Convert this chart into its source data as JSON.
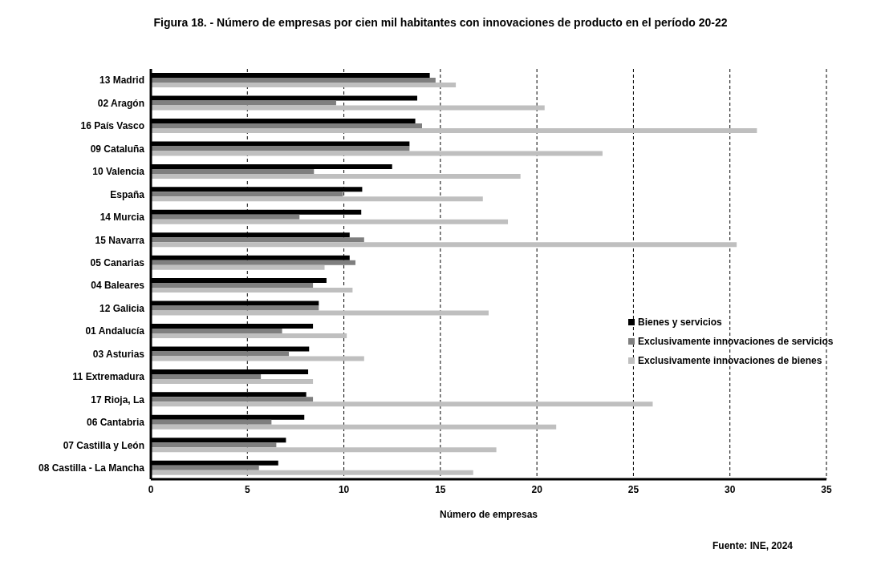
{
  "chart_data": {
    "type": "bar",
    "orientation": "horizontal",
    "title": "Figura 18. - Número de empresas por cien mil habitantes con innovaciones de producto en el período 20-22",
    "xlabel": "Número de empresas",
    "annotations": [
      "Fuente: INE, 2024"
    ],
    "categories": [
      "13 Madrid",
      "02 Aragón",
      "16 País Vasco",
      "09 Cataluña",
      "10 Valencia",
      "España",
      "14 Murcia",
      "15 Navarra",
      "05 Canarias",
      "04 Baleares",
      "12 Galicia",
      "01 Andalucía",
      "03 Asturias",
      "11 Extremadura",
      "17 Rioja, La",
      "06 Cantabria",
      "07 Castilla y León",
      "08 Castilla - La Mancha"
    ],
    "series": [
      {
        "name": "Bienes y servicios",
        "color": "#000000",
        "values": [
          14.45,
          13.8,
          13.7,
          13.4,
          12.5,
          10.95,
          10.9,
          10.3,
          10.3,
          9.1,
          8.7,
          8.4,
          8.2,
          8.15,
          8.05,
          7.95,
          7.0,
          6.6
        ]
      },
      {
        "name": "Exclusivamente innovaciones de servicios",
        "color": "#7f7f7f",
        "values": [
          14.75,
          9.6,
          14.05,
          13.4,
          8.45,
          9.95,
          7.7,
          11.05,
          10.6,
          8.4,
          8.7,
          6.8,
          7.15,
          5.7,
          8.4,
          6.25,
          6.5,
          5.6
        ]
      },
      {
        "name": "Exclusivamente innovaciones de bienes",
        "color": "#bfbfbf",
        "values": [
          15.8,
          20.4,
          31.4,
          23.4,
          19.15,
          17.2,
          18.5,
          30.35,
          9.0,
          10.45,
          17.5,
          10.15,
          11.05,
          8.4,
          26.0,
          21.0,
          17.9,
          16.7
        ]
      }
    ],
    "xlim": [
      0,
      35
    ],
    "xticks": [
      0,
      5,
      10,
      15,
      20,
      25,
      30,
      35
    ],
    "grid": "x",
    "legend": "right"
  }
}
